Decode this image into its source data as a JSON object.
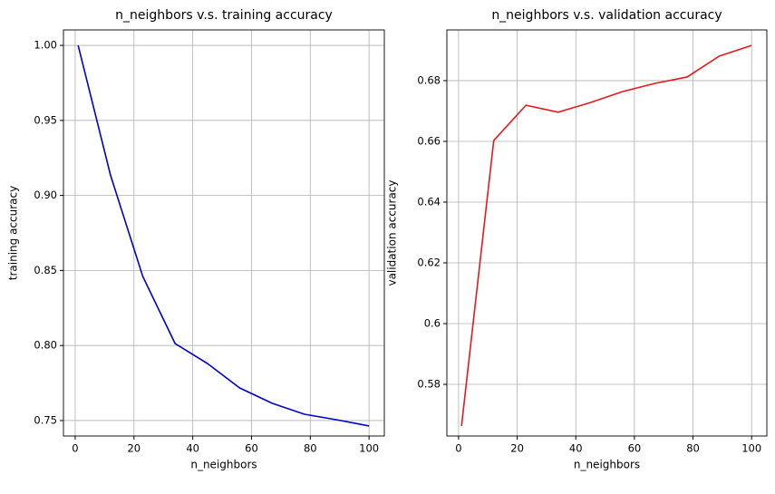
{
  "chart_data": [
    {
      "type": "line",
      "title": "n_neighbors v.s. training accuracy",
      "x_label": "n_neighbors",
      "y_label": "training accuracy",
      "x": [
        1,
        12,
        23,
        34,
        45,
        56,
        67,
        78,
        89,
        100
      ],
      "series": [
        {
          "color": "#0000cc",
          "values": [
            1.0,
            0.9136,
            0.846,
            0.8013,
            0.788,
            0.7717,
            0.7615,
            0.7542,
            0.7505,
            0.7464
          ]
        }
      ],
      "xlim": [
        -4.0,
        105.2
      ],
      "xticks": [
        0,
        20,
        40,
        60,
        80,
        100
      ],
      "ylim": [
        0.7397,
        1.0103
      ],
      "yticks": [
        {
          "value": 0.75,
          "label": "0.75"
        },
        {
          "value": 0.8,
          "label": "0.80"
        },
        {
          "value": 0.85,
          "label": "0.85"
        },
        {
          "value": 0.9,
          "label": "0.90"
        },
        {
          "value": 0.95,
          "label": "0.95"
        },
        {
          "value": 1.0,
          "label": "1.00"
        }
      ],
      "grid": true
    },
    {
      "type": "line",
      "title": "n_neighbors v.s. validation accuracy",
      "x_label": "n_neighbors",
      "y_label": "validation accuracy",
      "x": [
        1,
        12,
        23,
        34,
        45,
        56,
        67,
        78,
        89,
        100
      ],
      "series": [
        {
          "color": "#e31a1c",
          "values": [
            0.5663,
            0.6603,
            0.6719,
            0.6696,
            0.6728,
            0.6764,
            0.6791,
            0.6812,
            0.6881,
            0.6916
          ]
        }
      ],
      "xlim": [
        -4.0,
        105.2
      ],
      "xticks": [
        0,
        20,
        40,
        60,
        80,
        100
      ],
      "ylim": [
        0.563,
        0.6967
      ],
      "yticks": [
        0.58,
        0.6,
        0.62,
        0.64,
        0.66,
        0.68
      ],
      "grid": true
    }
  ]
}
